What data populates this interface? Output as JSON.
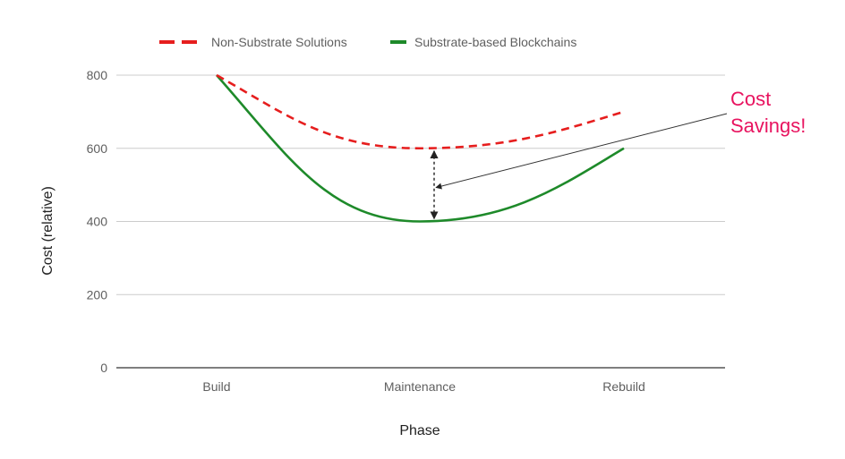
{
  "chart_data": {
    "type": "line",
    "title": "",
    "xlabel": "Phase",
    "ylabel": "Cost (relative)",
    "categories": [
      "Build",
      "Maintenance",
      "Rebuild"
    ],
    "ylim": [
      0,
      800
    ],
    "yticks": [
      0,
      200,
      400,
      600,
      800
    ],
    "grid": true,
    "legend_position": "top",
    "series": [
      {
        "name": "Non-Substrate Solutions",
        "values": [
          800,
          600,
          700
        ],
        "color": "#e61e1e",
        "style": "dashed"
      },
      {
        "name": "Substrate-based Blockchains",
        "values": [
          800,
          400,
          600
        ],
        "color": "#1e8a2a",
        "style": "solid"
      }
    ],
    "annotation": {
      "lines": [
        "Cost",
        "Savings!"
      ],
      "color": "#e8135f",
      "points_to_category": "Maintenance"
    }
  }
}
